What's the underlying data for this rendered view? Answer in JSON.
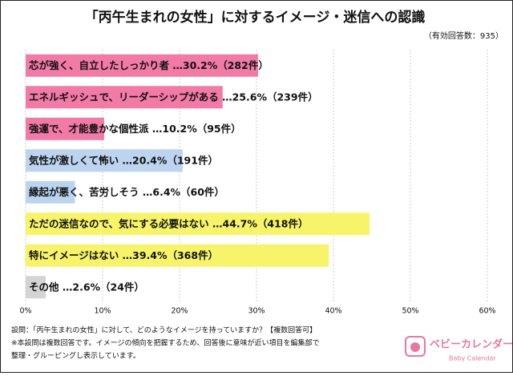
{
  "chart_data": {
    "type": "bar",
    "orientation": "horizontal",
    "title": "「丙午生まれの女性」に対するイメージ・迷信への認識",
    "subtitle": "（有効回答数：935）",
    "categories": [
      "芯が強く、自立したしっかり者",
      "エネルギッシュで、リーダーシップがある",
      "強運で、才能豊かな個性派",
      "気性が激しくて怖い",
      "縁起が悪く、苦労しそう",
      "ただの迷信なので、気にする必要はない",
      "特にイメージはない",
      "その他"
    ],
    "values": [
      30.2,
      25.6,
      10.2,
      20.4,
      6.4,
      44.7,
      39.4,
      2.6
    ],
    "value_labels": [
      " …30.2%（282件）",
      " …25.6%（239件）",
      " …10.2%（95件）",
      " …20.4%（191件）",
      " …6.4%（60件）",
      " …44.7%（418件）",
      " …39.4%（368件）",
      " …2.6%（24件）"
    ],
    "colors": [
      "#f27aa7",
      "#f27aa7",
      "#f27aa7",
      "#bcd4ef",
      "#bcd4ef",
      "#f7f46a",
      "#f7f46a",
      "#d4d4d4"
    ],
    "xlim": [
      0,
      60
    ],
    "xticks": [
      {
        "value": 0,
        "label": "0%"
      },
      {
        "value": 10,
        "label": "10%"
      },
      {
        "value": 20,
        "label": "20%"
      },
      {
        "value": 30,
        "label": "30%"
      },
      {
        "value": 40,
        "label": "40%"
      },
      {
        "value": 50,
        "label": "50%"
      },
      {
        "value": 60,
        "label": "60%"
      }
    ],
    "grid": true,
    "notes": [
      "設問：「丙午生まれの女性」に対して、どのようなイメージを持っていますか？【複数回答可】",
      "※本設問は複数回答です。イメージの傾向を把握するため、回答後に意味が近い項目を編集部で",
      "整理・グルーピングし表示しています。"
    ],
    "brand": "ベビーカレンダー",
    "brand_sub": "Baby Calendar"
  }
}
